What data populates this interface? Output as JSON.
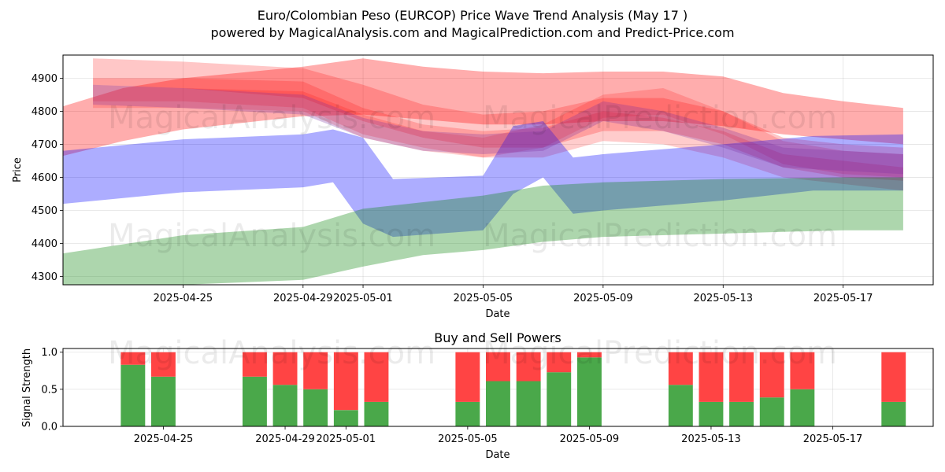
{
  "title": {
    "line1": "Euro/Colombian Peso (EURCOP) Price Wave Trend Analysis (May 17 )",
    "line2": "powered by MagicalAnalysis.com and MagicalPrediction.com and Predict-Price.com"
  },
  "watermarks": [
    "MagicalAnalysis.com",
    "MagicalPrediction.com"
  ],
  "colors": {
    "red": "#ff0000",
    "blue": "#0000ff",
    "green": "#008000",
    "buy": "#4aa84a",
    "sell": "#ff4444"
  },
  "chart_data": [
    {
      "type": "area",
      "title": "",
      "xlabel": "Date",
      "ylabel": "Price",
      "x_ticks": [
        "2025-04-25",
        "2025-04-29",
        "2025-05-01",
        "2025-05-05",
        "2025-05-09",
        "2025-05-13",
        "2025-05-17"
      ],
      "y_ticks": [
        4300,
        4400,
        4500,
        4600,
        4700,
        4800,
        4900
      ],
      "xlim": [
        "2025-04-21",
        "2025-05-20"
      ],
      "ylim": [
        4275,
        4970
      ],
      "grid": true,
      "series": [
        {
          "color": "red",
          "opacity": 0.32,
          "x": [
            "2025-04-21",
            "2025-04-23",
            "2025-04-25",
            "2025-04-29",
            "2025-05-01",
            "2025-05-03",
            "2025-05-05",
            "2025-05-07",
            "2025-05-09",
            "2025-05-11",
            "2025-05-13",
            "2025-05-15",
            "2025-05-17",
            "2025-05-19"
          ],
          "upper": [
            4815,
            4870,
            4900,
            4935,
            4960,
            4935,
            4920,
            4915,
            4920,
            4920,
            4905,
            4855,
            4830,
            4810
          ],
          "lower": [
            4665,
            4710,
            4745,
            4785,
            4790,
            4775,
            4760,
            4760,
            4770,
            4770,
            4755,
            4730,
            4715,
            4700
          ]
        },
        {
          "color": "red",
          "opacity": 0.22,
          "x": [
            "2025-04-22",
            "2025-04-25",
            "2025-04-29",
            "2025-05-01",
            "2025-05-03",
            "2025-05-05",
            "2025-05-07",
            "2025-05-09",
            "2025-05-11",
            "2025-05-13",
            "2025-05-15",
            "2025-05-17",
            "2025-05-19"
          ],
          "upper": [
            4960,
            4950,
            4930,
            4880,
            4820,
            4790,
            4800,
            4840,
            4840,
            4800,
            4720,
            4700,
            4690
          ],
          "lower": [
            4880,
            4870,
            4840,
            4770,
            4720,
            4690,
            4690,
            4740,
            4740,
            4700,
            4630,
            4600,
            4590
          ]
        },
        {
          "color": "red",
          "opacity": 0.2,
          "x": [
            "2025-04-22",
            "2025-04-25",
            "2025-04-29",
            "2025-05-01",
            "2025-05-03",
            "2025-05-05",
            "2025-05-07",
            "2025-05-09",
            "2025-05-11",
            "2025-05-13",
            "2025-05-15",
            "2025-05-17",
            "2025-05-19"
          ],
          "upper": [
            4900,
            4900,
            4890,
            4810,
            4760,
            4740,
            4750,
            4800,
            4780,
            4740,
            4670,
            4650,
            4630
          ],
          "lower": [
            4830,
            4830,
            4810,
            4730,
            4690,
            4660,
            4660,
            4710,
            4700,
            4660,
            4600,
            4580,
            4560
          ]
        },
        {
          "color": "red",
          "opacity": 0.18,
          "x": [
            "2025-04-22",
            "2025-04-25",
            "2025-04-29",
            "2025-05-01",
            "2025-05-03",
            "2025-05-05",
            "2025-05-07",
            "2025-05-09",
            "2025-05-11",
            "2025-05-13",
            "2025-05-15",
            "2025-05-17",
            "2025-05-19"
          ],
          "upper": [
            4880,
            4870,
            4860,
            4790,
            4740,
            4720,
            4760,
            4850,
            4870,
            4800,
            4710,
            4680,
            4670
          ],
          "lower": [
            4810,
            4810,
            4800,
            4720,
            4680,
            4660,
            4690,
            4780,
            4790,
            4730,
            4640,
            4610,
            4600
          ]
        },
        {
          "color": "blue",
          "opacity": 0.32,
          "x": [
            "2025-04-21",
            "2025-04-25",
            "2025-04-29",
            "2025-04-30",
            "2025-05-01",
            "2025-05-02",
            "2025-05-05",
            "2025-05-06",
            "2025-05-07",
            "2025-05-08",
            "2025-05-09",
            "2025-05-13",
            "2025-05-16",
            "2025-05-19"
          ],
          "upper": [
            4680,
            4715,
            4730,
            4745,
            4720,
            4595,
            4605,
            4755,
            4770,
            4660,
            4670,
            4700,
            4725,
            4730
          ],
          "lower": [
            4520,
            4555,
            4570,
            4585,
            4460,
            4420,
            4440,
            4550,
            4600,
            4490,
            4500,
            4530,
            4560,
            4560
          ]
        },
        {
          "color": "purple",
          "opacity": 0.28,
          "x": [
            "2025-04-22",
            "2025-04-25",
            "2025-04-29",
            "2025-05-01",
            "2025-05-03",
            "2025-05-05",
            "2025-05-07",
            "2025-05-09",
            "2025-05-11",
            "2025-05-13",
            "2025-05-15",
            "2025-05-17",
            "2025-05-19"
          ],
          "upper": [
            4880,
            4870,
            4850,
            4780,
            4740,
            4730,
            4740,
            4830,
            4800,
            4750,
            4690,
            4680,
            4670
          ],
          "lower": [
            4820,
            4810,
            4790,
            4720,
            4680,
            4670,
            4680,
            4770,
            4740,
            4690,
            4630,
            4620,
            4610
          ]
        },
        {
          "color": "green",
          "opacity": 0.32,
          "x": [
            "2025-04-21",
            "2025-04-25",
            "2025-04-29",
            "2025-05-01",
            "2025-05-03",
            "2025-05-05",
            "2025-05-07",
            "2025-05-09",
            "2025-05-13",
            "2025-05-17",
            "2025-05-19"
          ],
          "upper": [
            4370,
            4425,
            4450,
            4505,
            4525,
            4545,
            4575,
            4585,
            4595,
            4600,
            4600
          ],
          "lower": [
            4250,
            4270,
            4290,
            4330,
            4365,
            4380,
            4405,
            4420,
            4430,
            4440,
            4440
          ]
        }
      ]
    },
    {
      "type": "bar",
      "title": "Buy and Sell Powers",
      "xlabel": "Date",
      "ylabel": "Signal Strength",
      "x_ticks": [
        "2025-04-25",
        "2025-04-29",
        "2025-05-01",
        "2025-05-05",
        "2025-05-09",
        "2025-05-13",
        "2025-05-17"
      ],
      "y_ticks": [
        "0.0",
        "0.5",
        "1.0"
      ],
      "ylim": [
        0,
        1.05
      ],
      "series": [
        {
          "name": "buy",
          "color": "buy"
        },
        {
          "name": "sell",
          "color": "sell"
        }
      ],
      "bars": [
        {
          "date": "2025-04-24",
          "buy": 0.83
        },
        {
          "date": "2025-04-25",
          "buy": 0.67
        },
        {
          "date": "2025-04-28",
          "buy": 0.67
        },
        {
          "date": "2025-04-29",
          "buy": 0.56
        },
        {
          "date": "2025-04-30",
          "buy": 0.5
        },
        {
          "date": "2025-05-01",
          "buy": 0.22
        },
        {
          "date": "2025-05-02",
          "buy": 0.33
        },
        {
          "date": "2025-05-05",
          "buy": 0.33
        },
        {
          "date": "2025-05-06",
          "buy": 0.61
        },
        {
          "date": "2025-05-07",
          "buy": 0.61
        },
        {
          "date": "2025-05-08",
          "buy": 0.73
        },
        {
          "date": "2025-05-09",
          "buy": 0.93
        },
        {
          "date": "2025-05-12",
          "buy": 0.56
        },
        {
          "date": "2025-05-13",
          "buy": 0.33
        },
        {
          "date": "2025-05-14",
          "buy": 0.33
        },
        {
          "date": "2025-05-15",
          "buy": 0.39
        },
        {
          "date": "2025-05-16",
          "buy": 0.5
        },
        {
          "date": "2025-05-19",
          "buy": 0.33
        }
      ]
    }
  ]
}
